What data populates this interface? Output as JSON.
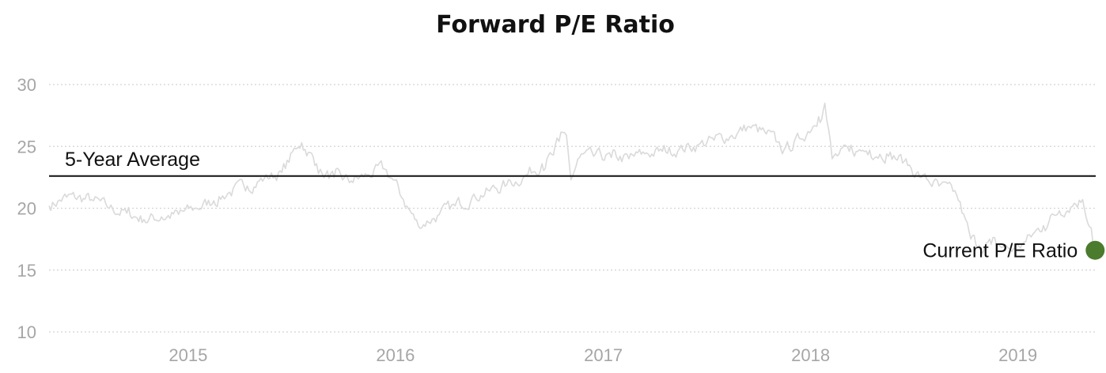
{
  "chart_data": {
    "type": "line",
    "title": "Forward P/E Ratio",
    "xlabel": "",
    "ylabel": "",
    "ylim": [
      10,
      30
    ],
    "xlim": [
      "2014-05-01",
      "2019-05-18"
    ],
    "y_ticks": [
      "10",
      "15",
      "20",
      "25",
      "30"
    ],
    "x_ticks": [
      "2015",
      "2016",
      "2017",
      "2018",
      "2019"
    ],
    "grid": "horizontal dotted",
    "series": [
      {
        "x": [
          "2014-05-01",
          "2014-06-01",
          "2014-07-15",
          "2014-08-15",
          "2014-09-15",
          "2014-10-15",
          "2014-11-15",
          "2014-12-15",
          "2015-01-15",
          "2015-02-15",
          "2015-03-15",
          "2015-04-15",
          "2015-05-15",
          "2015-06-15",
          "2015-07-10",
          "2015-07-20",
          "2015-08-15",
          "2015-08-25",
          "2015-09-15",
          "2015-10-15",
          "2015-11-15",
          "2015-12-10",
          "2015-12-28",
          "2016-01-15",
          "2016-02-10",
          "2016-03-15",
          "2016-04-15",
          "2016-05-15",
          "2016-06-15",
          "2016-07-15",
          "2016-08-15",
          "2016-09-15",
          "2016-10-05",
          "2016-10-15",
          "2016-10-28",
          "2016-11-05",
          "2016-11-20",
          "2016-12-15",
          "2017-01-15",
          "2017-02-15",
          "2017-03-15",
          "2017-04-15",
          "2017-05-15",
          "2017-06-15",
          "2017-07-15",
          "2017-08-15",
          "2017-09-15",
          "2017-10-15",
          "2017-11-01",
          "2017-11-15",
          "2017-12-15",
          "2018-01-15",
          "2018-01-26",
          "2018-02-08",
          "2018-03-10",
          "2018-03-25",
          "2018-04-15",
          "2018-05-15",
          "2018-06-15",
          "2018-07-15",
          "2018-08-15",
          "2018-09-15",
          "2018-10-10",
          "2018-10-25",
          "2018-11-15",
          "2018-12-24",
          "2019-01-15",
          "2019-02-15",
          "2019-03-15",
          "2019-04-10",
          "2019-04-25",
          "2019-05-10",
          "2019-05-17"
        ],
        "values": [
          20.2,
          20.9,
          20.7,
          20.0,
          19.6,
          19.1,
          19.3,
          19.5,
          20.0,
          20.6,
          21.3,
          21.8,
          22.4,
          22.9,
          24.8,
          25.3,
          23.6,
          22.8,
          22.5,
          22.2,
          22.7,
          23.2,
          22.3,
          20.7,
          18.6,
          19.4,
          20.2,
          20.9,
          21.4,
          21.9,
          22.6,
          23.6,
          24.3,
          25.4,
          25.9,
          22.3,
          24.1,
          24.2,
          24.1,
          24.0,
          24.4,
          24.6,
          24.8,
          25.1,
          25.5,
          25.9,
          26.6,
          26.0,
          25.4,
          24.7,
          25.6,
          27.4,
          28.5,
          24.0,
          24.6,
          24.6,
          24.7,
          24.4,
          23.8,
          22.5,
          21.8,
          21.1,
          17.5,
          17.0,
          17.1,
          16.7,
          17.3,
          18.6,
          19.8,
          20.4,
          20.7,
          18.4,
          16.6
        ]
      }
    ],
    "annotations": {
      "average": {
        "label": "5-Year Average",
        "value": 22.6
      },
      "current": {
        "label": "Current P/E Ratio",
        "value": 16.6,
        "color": "#4b7b2d"
      }
    },
    "colors": {
      "series": "#dadada",
      "average": "#111111",
      "current_marker": "#4b7b2d",
      "ticks": "#a6a6a6",
      "grid": "#d3d3d3"
    }
  }
}
